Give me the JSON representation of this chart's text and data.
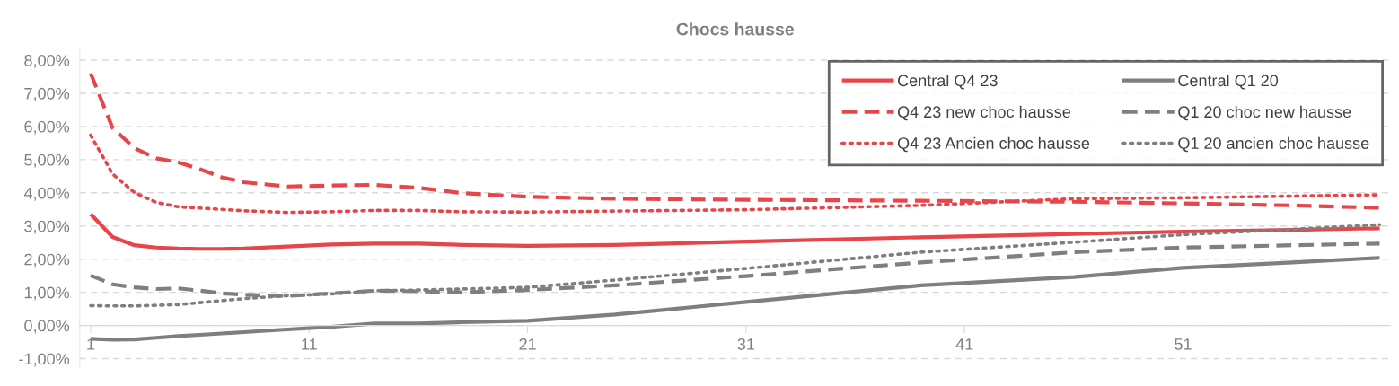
{
  "chart_data": {
    "type": "line",
    "title": "Chocs hausse",
    "x": [
      1,
      2,
      3,
      4,
      5,
      6,
      7,
      8,
      10,
      12,
      14,
      16,
      18,
      21,
      25,
      31,
      39,
      46,
      51,
      56,
      60
    ],
    "xlim": [
      0.5,
      60.5
    ],
    "xticks": [
      1,
      11,
      21,
      31,
      41,
      51
    ],
    "ylim": [
      -1.3,
      8.3
    ],
    "yticks": [
      {
        "value": -1,
        "label": "-1,00%"
      },
      {
        "value": 0,
        "label": "0,00%"
      },
      {
        "value": 1,
        "label": "1,00%"
      },
      {
        "value": 2,
        "label": "2,00%"
      },
      {
        "value": 3,
        "label": "3,00%"
      },
      {
        "value": 4,
        "label": "4,00%"
      },
      {
        "value": 5,
        "label": "5,00%"
      },
      {
        "value": 6,
        "label": "6,00%"
      },
      {
        "value": 7,
        "label": "7,00%"
      },
      {
        "value": 8,
        "label": "8,00%"
      }
    ],
    "grid": "y",
    "legend": "top right",
    "marker": "none",
    "series": [
      {
        "name": "Central Q4 23",
        "color": "#e8454a",
        "line_style": "solid",
        "values": [
          3.36,
          2.67,
          2.42,
          2.35,
          2.32,
          2.31,
          2.31,
          2.32,
          2.38,
          2.44,
          2.47,
          2.47,
          2.43,
          2.4,
          2.43,
          2.53,
          2.66,
          2.76,
          2.83,
          2.88,
          2.93
        ]
      },
      {
        "name": "Q4 23 new choc hausse",
        "color": "#e8454a",
        "line_style": "dashed",
        "values": [
          7.6,
          5.96,
          5.35,
          5.04,
          4.92,
          4.71,
          4.47,
          4.32,
          4.19,
          4.22,
          4.24,
          4.15,
          3.99,
          3.88,
          3.82,
          3.79,
          3.76,
          3.73,
          3.68,
          3.62,
          3.55
        ]
      },
      {
        "name": "Q4 23 Ancien choc hausse",
        "color": "#e8454a",
        "line_style": "dotted",
        "values": [
          5.74,
          4.57,
          4.01,
          3.71,
          3.58,
          3.54,
          3.5,
          3.46,
          3.41,
          3.43,
          3.47,
          3.47,
          3.43,
          3.42,
          3.45,
          3.49,
          3.62,
          3.82,
          3.85,
          3.9,
          3.94
        ]
      },
      {
        "name": "Central Q1 20",
        "color": "#7f7f7f",
        "line_style": "solid",
        "values": [
          -0.4,
          -0.43,
          -0.42,
          -0.37,
          -0.32,
          -0.28,
          -0.24,
          -0.2,
          -0.12,
          -0.04,
          0.06,
          0.06,
          0.1,
          0.14,
          0.33,
          0.71,
          1.21,
          1.46,
          1.74,
          1.9,
          2.04
        ]
      },
      {
        "name": "Q1 20 choc new hausse",
        "color": "#7f7f7f",
        "line_style": "dashed",
        "values": [
          1.51,
          1.24,
          1.15,
          1.1,
          1.12,
          1.05,
          0.97,
          0.93,
          0.89,
          0.97,
          1.05,
          1.03,
          1.0,
          1.07,
          1.21,
          1.49,
          1.9,
          2.21,
          2.35,
          2.42,
          2.47
        ]
      },
      {
        "name": "Q1 20 ancien choc hausse",
        "color": "#7f7f7f",
        "line_style": "dotted",
        "values": [
          0.6,
          0.59,
          0.59,
          0.61,
          0.63,
          0.69,
          0.75,
          0.81,
          0.9,
          0.95,
          1.05,
          1.07,
          1.1,
          1.15,
          1.37,
          1.72,
          2.21,
          2.51,
          2.74,
          2.9,
          3.04
        ]
      }
    ]
  }
}
